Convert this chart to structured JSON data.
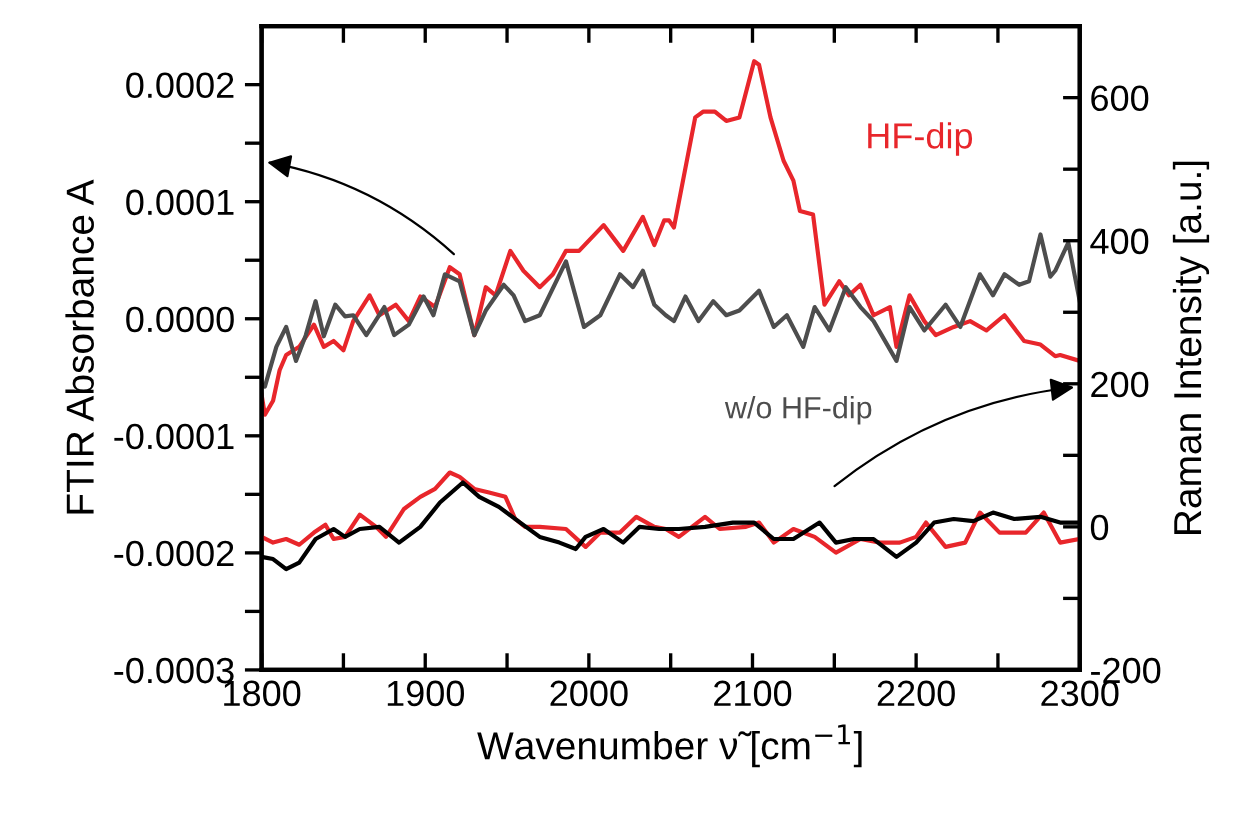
{
  "chart_data": {
    "type": "line",
    "xlabel": "Wavenumber ν̃ [cm$^{−1}$]",
    "ylabel": "FTIR Absorbance A",
    "y2label": "Raman Intensity [a.u.]",
    "xlim": [
      1800,
      2300
    ],
    "xticks": [
      1800,
      {
        "value": 1850,
        "label": null
      },
      1900,
      {
        "value": 1950,
        "label": null
      },
      2000,
      {
        "value": 2050,
        "label": null
      },
      2100,
      {
        "value": 2150,
        "label": null
      },
      2200,
      {
        "value": 2250,
        "label": null
      },
      2300
    ],
    "ylim": [
      -0.0003,
      0.00025
    ],
    "yticks": [
      -0.0003,
      {
        "value": -0.00025,
        "label": null
      },
      -0.0002,
      {
        "value": -0.00015,
        "label": null
      },
      -0.0001,
      {
        "value": -5e-05,
        "label": null
      },
      {
        "value": 0,
        "label": "0.0000"
      },
      {
        "value": 5e-05,
        "label": null
      },
      0.0001,
      {
        "value": 0.00015,
        "label": null
      },
      0.0002
    ],
    "y2lim": [
      -200,
      700
    ],
    "y2ticks": [
      -200,
      {
        "value": -100,
        "label": null
      },
      0,
      {
        "value": 100,
        "label": null
      },
      200,
      {
        "value": 300,
        "label": null
      },
      400,
      {
        "value": 500,
        "label": null
      },
      600
    ],
    "grid": false,
    "legend": false,
    "marker": "none",
    "line_style": "solid",
    "series": [
      {
        "name": "HF-dip",
        "color": "#e8262b",
        "axis": "y",
        "x": [
          1800,
          1802,
          1807,
          1811,
          1815,
          1823,
          1832,
          1838,
          1844,
          1850,
          1856,
          1866,
          1872,
          1882,
          1890,
          1897,
          1906,
          1915,
          1921,
          1930,
          1937,
          1943,
          1952,
          1960,
          1970,
          1978,
          1986,
          1994,
          2009,
          2021,
          2033,
          2040,
          2046,
          2049,
          2052,
          2065,
          2070,
          2077,
          2084,
          2092,
          2101,
          2104,
          2111,
          2119,
          2125,
          2129,
          2137,
          2144,
          2153,
          2159,
          2166,
          2174,
          2184,
          2188,
          2196,
          2205,
          2212,
          2223,
          2233,
          2243,
          2254,
          2266,
          2276,
          2285,
          2288,
          2300
        ],
        "values": [
          -6.5e-05,
          -8.2e-05,
          -7e-05,
          -4.4e-05,
          -3.1e-05,
          -2.4e-05,
          -5e-06,
          -2.4e-05,
          -1.9e-05,
          -2.7e-05,
          -2e-06,
          2e-05,
          3e-06,
          1.2e-05,
          -2e-06,
          1.9e-05,
          1e-05,
          4.4e-05,
          3.8e-05,
          -1.4e-05,
          2.7e-05,
          2e-05,
          5.8e-05,
          4.1e-05,
          2.7e-05,
          3.8e-05,
          5.8e-05,
          5.8e-05,
          8e-05,
          5.8e-05,
          8.7e-05,
          6.3e-05,
          8.4e-05,
          8.4e-05,
          7.8e-05,
          0.000172,
          0.000177,
          0.000177,
          0.000169,
          0.000172,
          0.00022,
          0.000217,
          0.000172,
          0.000135,
          0.000118,
          9.2e-05,
          8.9e-05,
          1.2e-05,
          3.2e-05,
          2e-05,
          2.9e-05,
          3e-06,
          1e-05,
          -2.4e-05,
          2e-05,
          -2e-06,
          -1.4e-05,
          -7e-06,
          -2e-06,
          -1e-05,
          3e-06,
          -1.9e-05,
          -2.2e-05,
          -3.2e-05,
          -3.1e-05,
          -3.6e-05
        ]
      },
      {
        "name": "w/o HF-dip",
        "color": "#4d4d4d",
        "axis": "y",
        "x": [
          1800,
          1802,
          1809,
          1815,
          1821,
          1827,
          1833,
          1838,
          1845,
          1851,
          1856,
          1864,
          1875,
          1881,
          1890,
          1899,
          1905,
          1912,
          1921,
          1930,
          1937,
          1948,
          1954,
          1961,
          1970,
          1986,
          1997,
          2007,
          2019,
          2027,
          2033,
          2040,
          2047,
          2052,
          2059,
          2067,
          2076,
          2084,
          2092,
          2104,
          2113,
          2121,
          2131,
          2138,
          2147,
          2157,
          2166,
          2174,
          2188,
          2196,
          2205,
          2218,
          2227,
          2239,
          2247,
          2254,
          2263,
          2269,
          2276,
          2282,
          2285,
          2293,
          2300
        ],
        "values": [
          -5.6e-05,
          -5.8e-05,
          -2.4e-05,
          -7e-06,
          -3.6e-05,
          -1.4e-05,
          1.5e-05,
          -1.5e-05,
          1.2e-05,
          2e-06,
          3e-06,
          -1.4e-05,
          1e-05,
          -1.4e-05,
          -5e-06,
          1.9e-05,
          3e-06,
          3.8e-05,
          3.2e-05,
          -1.4e-05,
          7e-06,
          2.9e-05,
          2e-05,
          -2e-06,
          3e-06,
          4.9e-05,
          -7e-06,
          3e-06,
          3.8e-05,
          2.7e-05,
          4.1e-05,
          1.2e-05,
          3e-06,
          -2e-06,
          1.9e-05,
          -2e-06,
          1.5e-05,
          3e-06,
          7e-06,
          2.4e-05,
          -7e-06,
          3e-06,
          -2.4e-05,
          1e-05,
          -1e-05,
          2.7e-05,
          1e-05,
          -2e-06,
          -3.6e-05,
          1e-05,
          -1e-05,
          1.2e-05,
          -7e-06,
          3.8e-05,
          2e-05,
          3.8e-05,
          2.9e-05,
          3.2e-05,
          7.2e-05,
          3.6e-05,
          4.1e-05,
          6.5e-05,
          1.5e-05
        ]
      },
      {
        "color": "#e8262b",
        "axis": "y2",
        "x": [
          1800,
          1807,
          1815,
          1823,
          1832,
          1839,
          1844,
          1851,
          1860,
          1870,
          1876,
          1887,
          1897,
          1906,
          1915,
          1921,
          1930,
          1939,
          1949,
          1955,
          1961,
          1970,
          1986,
          1998,
          2007,
          2019,
          2029,
          2040,
          2047,
          2055,
          2071,
          2080,
          2096,
          2104,
          2113,
          2125,
          2138,
          2151,
          2166,
          2178,
          2190,
          2200,
          2206,
          2218,
          2230,
          2239,
          2251,
          2267,
          2278,
          2288,
          2300
        ],
        "values": [
          -14,
          -22,
          -17,
          -25,
          -8,
          3,
          -17,
          -14,
          17,
          0,
          -14,
          25,
          42,
          53,
          76,
          70,
          53,
          48,
          42,
          11,
          0,
          0,
          -3,
          -28,
          -8,
          -8,
          14,
          0,
          -3,
          -14,
          14,
          -3,
          0,
          6,
          -22,
          -3,
          -14,
          -36,
          -17,
          -22,
          -22,
          -14,
          6,
          -28,
          -22,
          20,
          -8,
          -8,
          20,
          -22,
          -17
        ]
      },
      {
        "color": "#000000",
        "axis": "y2",
        "x": [
          1800,
          1807,
          1815,
          1823,
          1833,
          1844,
          1851,
          1860,
          1872,
          1884,
          1897,
          1909,
          1923,
          1933,
          1945,
          1958,
          1970,
          1982,
          1992,
          1998,
          2009,
          2021,
          2031,
          2043,
          2055,
          2071,
          2088,
          2101,
          2113,
          2125,
          2141,
          2151,
          2162,
          2174,
          2188,
          2200,
          2211,
          2223,
          2235,
          2247,
          2260,
          2276,
          2288,
          2300
        ],
        "values": [
          -42,
          -45,
          -59,
          -50,
          -17,
          -3,
          -14,
          -3,
          0,
          -22,
          0,
          34,
          62,
          42,
          28,
          6,
          -14,
          -22,
          -31,
          -14,
          -3,
          -22,
          0,
          -3,
          -3,
          0,
          6,
          6,
          -17,
          -17,
          6,
          -22,
          -17,
          -17,
          -42,
          -22,
          6,
          11,
          8,
          20,
          11,
          14,
          6,
          6
        ]
      }
    ]
  }
}
